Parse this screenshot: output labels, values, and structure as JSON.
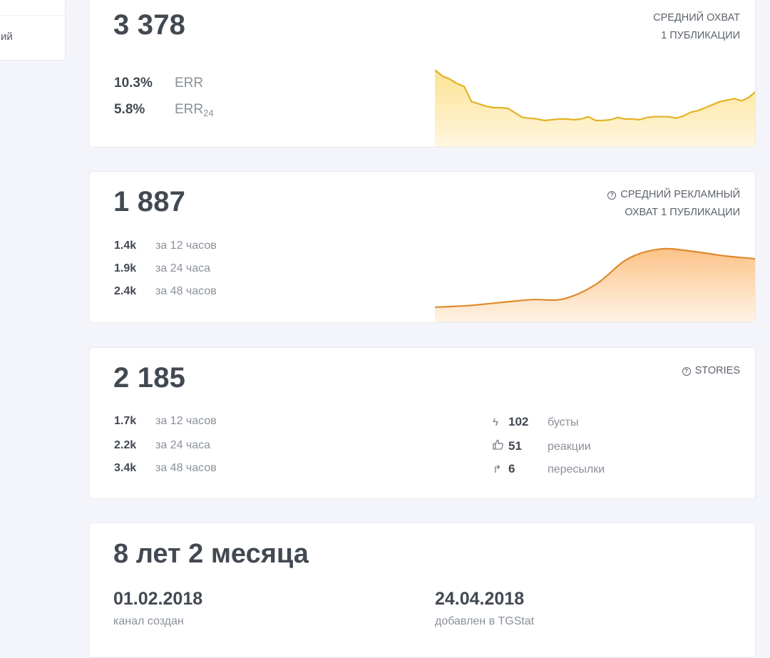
{
  "sidebar": {
    "visible_item_fragment": "ий"
  },
  "cards": {
    "avg_reach": {
      "value": "3 378",
      "caption_line1": "СРЕДНИЙ ОХВАТ",
      "caption_line2": "1 ПУБЛИКАЦИИ",
      "err": {
        "value": "10.3%",
        "label": "ERR"
      },
      "err24": {
        "value": "5.8%",
        "label": "ERR",
        "sub": "24"
      }
    },
    "ad_reach": {
      "value": "1 887",
      "caption_icon": "question-circle-icon",
      "caption_line1": "СРЕДНИЙ РЕКЛАМНЫЙ",
      "caption_line2": "ОХВАТ 1 ПУБЛИКАЦИИ",
      "rows": [
        {
          "value": "1.4k",
          "label": "за 12 часов"
        },
        {
          "value": "1.9k",
          "label": "за 24 часа"
        },
        {
          "value": "2.4k",
          "label": "за 48 часов"
        }
      ]
    },
    "stories": {
      "value": "2 185",
      "caption_icon": "question-circle-icon",
      "caption": "STORIES",
      "rows": [
        {
          "value": "1.7k",
          "label": "за 12 часов"
        },
        {
          "value": "2.2k",
          "label": "за 24 часа"
        },
        {
          "value": "3.4k",
          "label": "за 48 часов"
        }
      ],
      "metrics": [
        {
          "icon": "lightning-icon",
          "glyph": "ϟ",
          "value": "102",
          "label": "бусты"
        },
        {
          "icon": "thumbs-up-icon",
          "glyph": "👍",
          "value": "51",
          "label": "реакции"
        },
        {
          "icon": "forward-arrow-icon",
          "glyph": "↱",
          "value": "6",
          "label": "пересылки"
        }
      ]
    },
    "age": {
      "title": "8 лет 2 месяца",
      "created": {
        "date": "01.02.2018",
        "label": "канал создан"
      },
      "added": {
        "date": "24.04.2018",
        "label": "добавлен в TGStat"
      }
    }
  },
  "colors": {
    "reach_line": "#e8b923",
    "reach_fill": "#fde9a8",
    "ad_line": "#e0892a",
    "ad_fill": "#fcc68b"
  },
  "chart_data": [
    {
      "type": "area",
      "title": "Средний охват 1 публикации (sparkline)",
      "x": [
        0,
        1,
        2,
        3,
        4,
        5,
        6,
        7,
        8,
        9,
        10,
        11,
        12,
        13,
        14,
        15,
        16,
        17,
        18,
        19,
        20,
        21,
        22,
        23,
        24,
        25,
        26,
        27,
        28,
        29,
        30,
        31,
        32,
        33,
        34,
        35,
        36,
        37,
        38,
        39,
        40,
        41,
        42,
        43,
        44
      ],
      "values": [
        100,
        92,
        88,
        82,
        78,
        58,
        55,
        52,
        50,
        50,
        49,
        43,
        37,
        36,
        35,
        33,
        34,
        35,
        35,
        34,
        35,
        38,
        33,
        33,
        34,
        37,
        35,
        35,
        34,
        37,
        38,
        38,
        38,
        36,
        39,
        44,
        46,
        50,
        54,
        58,
        60,
        62,
        59,
        64,
        72
      ],
      "xlabel": "",
      "ylabel": "",
      "grid": false,
      "legend": null
    },
    {
      "type": "area",
      "title": "Средний рекламный охват 1 публикации (sparkline)",
      "x": [
        0,
        1,
        2,
        3,
        4,
        5,
        6,
        7,
        8,
        9,
        10
      ],
      "values": [
        18,
        20,
        24,
        28,
        29,
        48,
        82,
        95,
        92,
        86,
        82
      ],
      "xlabel": "",
      "ylabel": "",
      "grid": false,
      "legend": null
    }
  ]
}
